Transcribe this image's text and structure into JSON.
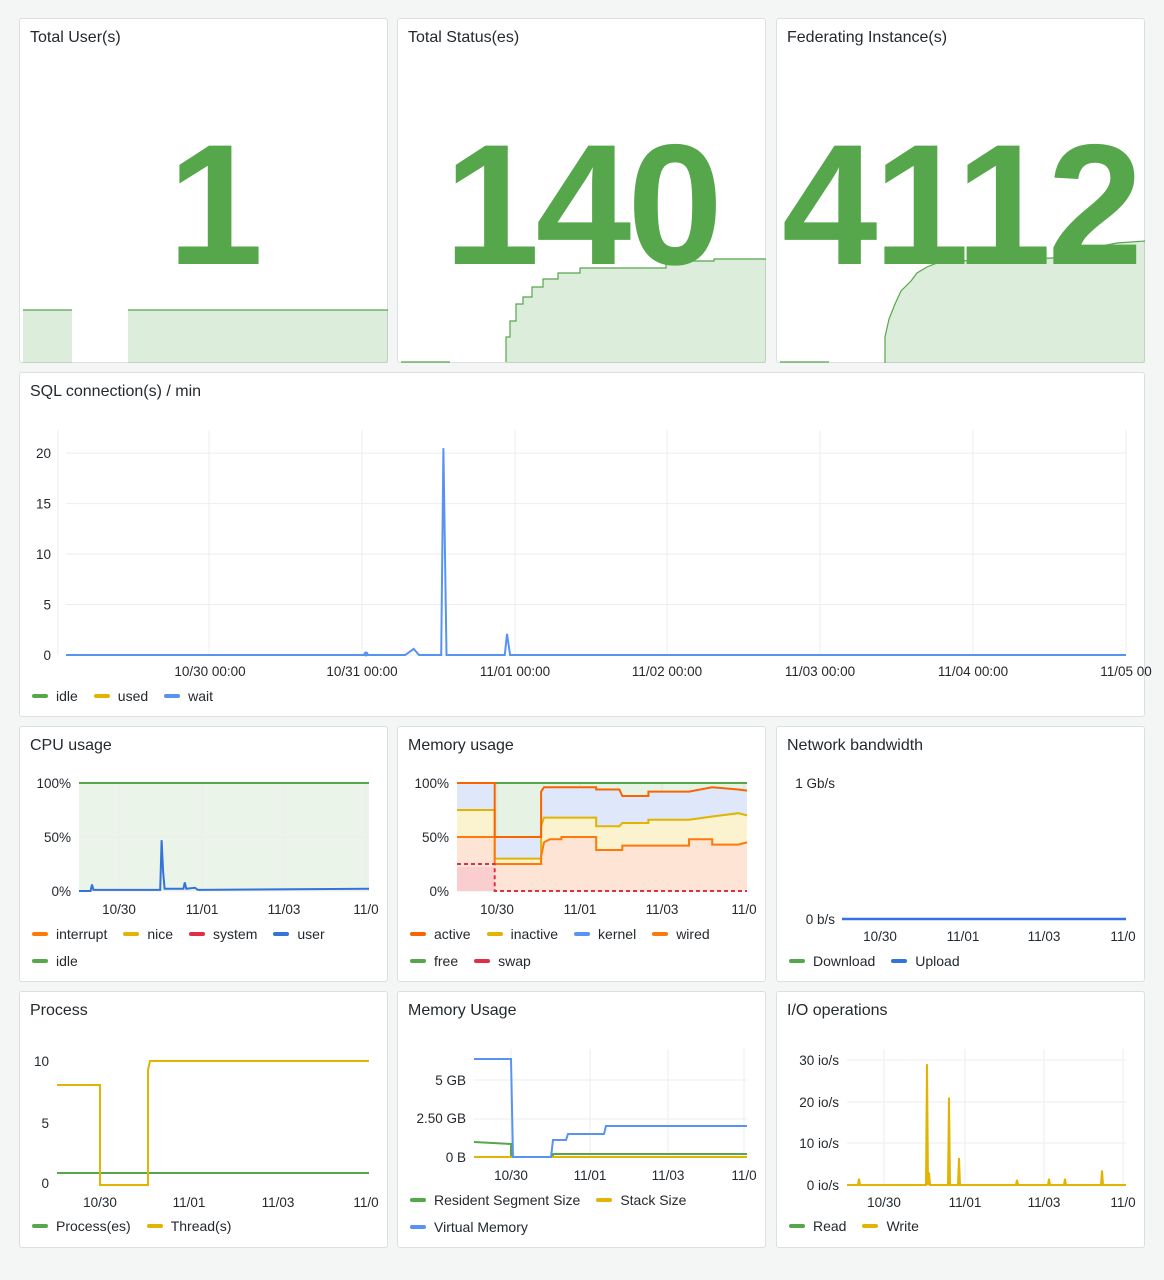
{
  "colors": {
    "green": "#56a64b",
    "yellow": "#e0b400",
    "blue": "#5794f2",
    "darkblue": "#3274d9",
    "orange": "#ff780a",
    "red": "#e02f44",
    "darkorange": "#fa6400"
  },
  "stats": [
    {
      "title": "Total User(s)",
      "value": "1",
      "sparkline": [
        1,
        1,
        1,
        1,
        0,
        0,
        0,
        1,
        1,
        1,
        1,
        1,
        1,
        1,
        1,
        1,
        1,
        1,
        1,
        1,
        1
      ]
    },
    {
      "title": "Total Status(es)",
      "value": "140",
      "sparkline": [
        0,
        0,
        0,
        0,
        0,
        0,
        0,
        0,
        0,
        30,
        40,
        55,
        70,
        78,
        85,
        88,
        88,
        88,
        88,
        92,
        92,
        92
      ]
    },
    {
      "title": "Federating Instance(s)",
      "value": "4112",
      "sparkline": [
        0,
        0,
        0,
        0,
        0,
        0,
        0,
        0,
        0,
        35,
        55,
        70,
        80,
        86,
        90,
        92,
        93,
        93,
        94,
        95,
        96,
        96
      ]
    }
  ],
  "sql": {
    "title": "SQL connection(s) / min",
    "chart_data": {
      "type": "line",
      "ylim": [
        0,
        22
      ],
      "y_ticks": [
        "0",
        "5",
        "10",
        "15",
        "20"
      ],
      "x_ticks": [
        "10/30 00:00",
        "10/31 00:00",
        "11/01 00:00",
        "11/02 00:00",
        "11/03 00:00",
        "11/04 00:00",
        "11/05 00"
      ],
      "series": [
        {
          "name": "idle",
          "values": []
        },
        {
          "name": "used",
          "values": []
        },
        {
          "name": "wait",
          "points": [
            [
              0,
              0
            ],
            [
              0.32,
              0
            ],
            [
              0.328,
              0.6
            ],
            [
              0.333,
              0
            ],
            [
              0.354,
              0
            ],
            [
              0.356,
              20.5
            ],
            [
              0.359,
              0
            ],
            [
              0.414,
              0
            ],
            [
              0.416,
              2.1
            ],
            [
              0.419,
              0
            ],
            [
              1,
              0
            ]
          ]
        }
      ]
    },
    "legend": [
      "idle",
      "used",
      "wait"
    ]
  },
  "cpu": {
    "title": "CPU usage",
    "chart_data": {
      "type": "area",
      "y_ticks": [
        "0%",
        "50%",
        "100%"
      ],
      "x_ticks": [
        "10/30",
        "11/01",
        "11/03",
        "11/0"
      ],
      "ylim": [
        0,
        100
      ]
    },
    "legend": [
      "interrupt",
      "nice",
      "system",
      "user",
      "idle"
    ]
  },
  "memory": {
    "title": "Memory usage",
    "chart_data": {
      "type": "area",
      "y_ticks": [
        "0%",
        "50%",
        "100%"
      ],
      "x_ticks": [
        "10/30",
        "11/01",
        "11/03",
        "11/0"
      ],
      "ylim": [
        0,
        100
      ]
    },
    "legend": [
      "active",
      "inactive",
      "kernel",
      "wired",
      "free",
      "swap"
    ]
  },
  "network": {
    "title": "Network bandwidth",
    "chart_data": {
      "type": "line",
      "y_ticks": [
        "0 b/s",
        "1 Gb/s"
      ],
      "x_ticks": [
        "10/30",
        "11/01",
        "11/03",
        "11/0"
      ]
    },
    "legend": [
      "Download",
      "Upload"
    ]
  },
  "process": {
    "title": "Process",
    "chart_data": {
      "type": "line",
      "y_ticks": [
        "0",
        "5",
        "10"
      ],
      "x_ticks": [
        "10/30",
        "11/01",
        "11/03",
        "11/0"
      ],
      "ylim": [
        0,
        10.5
      ]
    },
    "legend": [
      "Process(es)",
      "Thread(s)"
    ]
  },
  "memusage": {
    "title": "Memory Usage",
    "chart_data": {
      "type": "line",
      "y_ticks": [
        "0 B",
        "2.50 GB",
        "5 GB"
      ],
      "x_ticks": [
        "10/30",
        "11/01",
        "11/03",
        "11/0"
      ]
    },
    "legend": [
      "Resident Segment Size",
      "Stack Size",
      "Virtual Memory"
    ]
  },
  "io": {
    "title": "I/O operations",
    "chart_data": {
      "type": "line",
      "y_ticks": [
        "0 io/s",
        "10 io/s",
        "20 io/s",
        "30 io/s"
      ],
      "x_ticks": [
        "10/30",
        "11/01",
        "11/03",
        "11/0"
      ],
      "ylim": [
        0,
        30
      ]
    },
    "legend": [
      "Read",
      "Write"
    ]
  }
}
